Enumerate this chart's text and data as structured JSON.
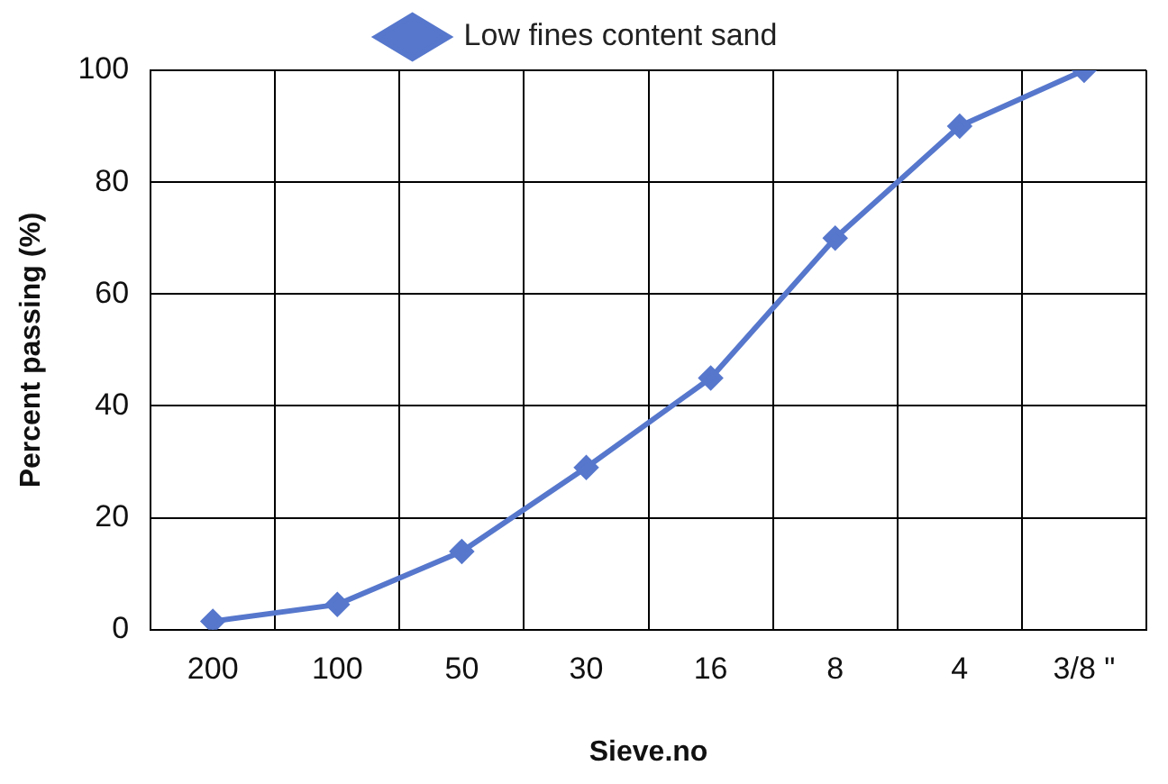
{
  "chart_data": {
    "type": "line",
    "xlabel": "Sieve.no",
    "ylabel": "Percent passing (%)",
    "categories": [
      "200",
      "100",
      "50",
      "30",
      "16",
      "8",
      "4",
      "3/8 \""
    ],
    "series": [
      {
        "name": "Low fines content sand",
        "color": "#5677cc",
        "values": [
          1.5,
          4.5,
          14,
          29,
          45,
          70,
          90,
          100
        ]
      }
    ],
    "ylim": [
      0,
      100
    ],
    "yticks": [
      0,
      20,
      40,
      60,
      80,
      100
    ],
    "grid": true,
    "legend": "top",
    "marker": "diamond",
    "line_style": "solid"
  }
}
